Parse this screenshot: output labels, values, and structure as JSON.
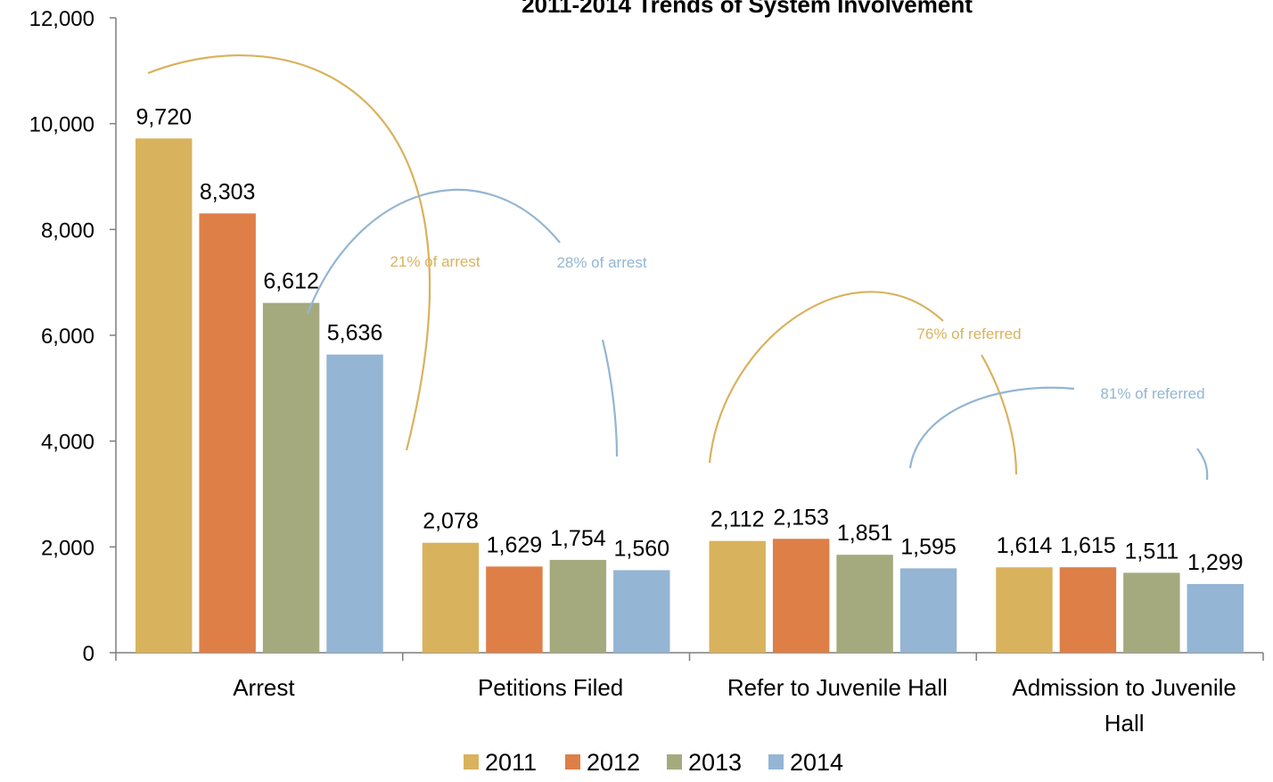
{
  "chart_data": {
    "type": "bar",
    "title": "2011-2014 Trends of System Involvement",
    "categories": [
      "Arrest",
      "Petitions Filed",
      "Refer to Juvenile Hall",
      "Admission to Juvenile Hall"
    ],
    "series": [
      {
        "name": "2011",
        "color": "#D9B25D",
        "values": [
          9720,
          2078,
          2112,
          1614
        ]
      },
      {
        "name": "2012",
        "color": "#DE7F48",
        "values": [
          8303,
          1629,
          2153,
          1615
        ]
      },
      {
        "name": "2013",
        "color": "#A5AA7E",
        "values": [
          6612,
          1754,
          1851,
          1511
        ]
      },
      {
        "name": "2014",
        "color": "#94B5D3",
        "values": [
          5636,
          1560,
          1595,
          1299
        ]
      }
    ],
    "data_labels": [
      [
        "9,720",
        "2,078",
        "2,112",
        "1,614"
      ],
      [
        "8,303",
        "1,629",
        "2,153",
        "1,615"
      ],
      [
        "6,612",
        "1,754",
        "1,851",
        "1,511"
      ],
      [
        "5,636",
        "1,560",
        "1,595",
        "1,299"
      ]
    ],
    "ylim": [
      0,
      12000
    ],
    "yticks": [
      0,
      2000,
      4000,
      6000,
      8000,
      10000,
      12000
    ],
    "ytick_labels": [
      "0",
      "2,000",
      "4,000",
      "6,000",
      "8,000",
      "10,000",
      "12,000"
    ],
    "xlabel": "",
    "ylabel": "",
    "legend_position": "bottom",
    "grid": false,
    "annotations": [
      {
        "text": "21% of arrest",
        "color": "#D9B25D"
      },
      {
        "text": "28% of arrest",
        "color": "#94B5D3"
      },
      {
        "text": "76% of referred",
        "color": "#D9B25D"
      },
      {
        "text": "81% of referred",
        "color": "#94B5D3"
      }
    ]
  }
}
